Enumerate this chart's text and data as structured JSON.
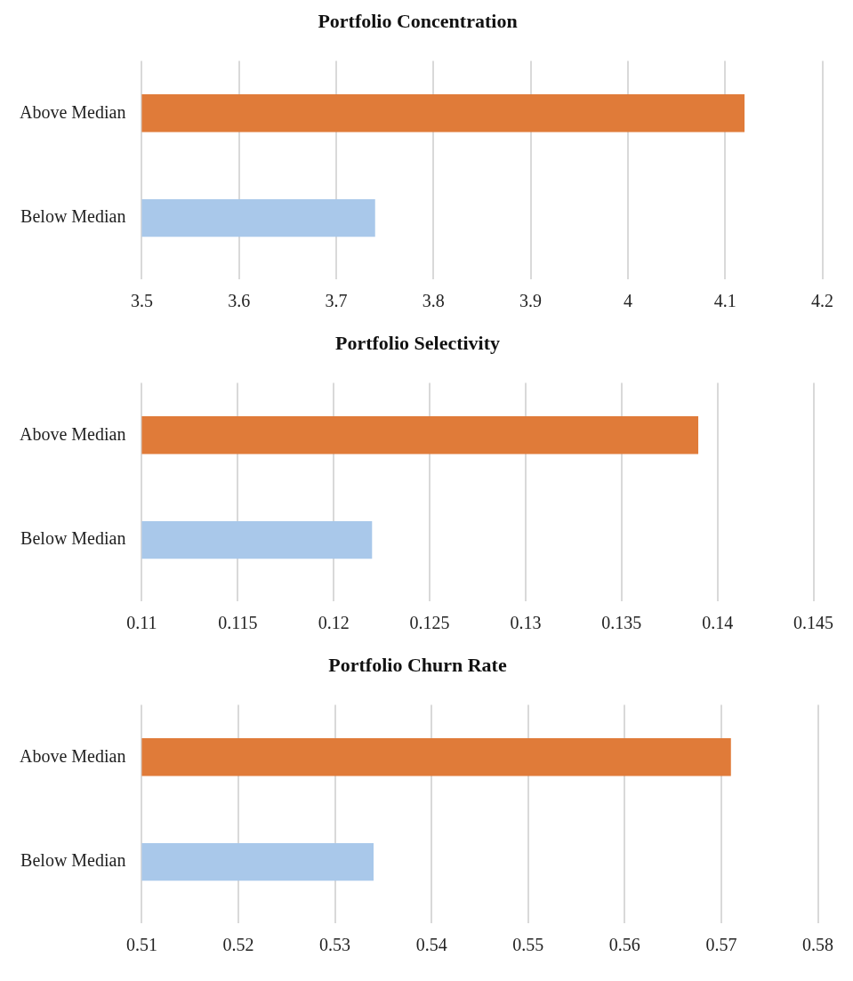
{
  "chart_data": [
    {
      "type": "bar",
      "orientation": "horizontal",
      "title": "Portfolio Concentration",
      "categories": [
        "Above Median",
        "Below Median"
      ],
      "values": [
        4.12,
        3.74
      ],
      "colors": [
        "#e07b39",
        "#a9c8ea"
      ],
      "xlim": [
        3.5,
        4.2
      ],
      "xticks": [
        3.5,
        3.6,
        3.7,
        3.8,
        3.9,
        4,
        4.1,
        4.2
      ],
      "grid": "x",
      "legend": false
    },
    {
      "type": "bar",
      "orientation": "horizontal",
      "title": "Portfolio Selectivity",
      "categories": [
        "Above Median",
        "Below Median"
      ],
      "values": [
        0.139,
        0.122
      ],
      "colors": [
        "#e07b39",
        "#a9c8ea"
      ],
      "xlim": [
        0.11,
        0.145
      ],
      "xticks": [
        0.11,
        0.115,
        0.12,
        0.125,
        0.13,
        0.135,
        0.14,
        0.145
      ],
      "grid": "x",
      "legend": false
    },
    {
      "type": "bar",
      "orientation": "horizontal",
      "title": "Portfolio Churn Rate",
      "categories": [
        "Above Median",
        "Below Median"
      ],
      "values": [
        0.571,
        0.534
      ],
      "colors": [
        "#e07b39",
        "#a9c8ea"
      ],
      "xlim": [
        0.51,
        0.58
      ],
      "xticks": [
        0.51,
        0.52,
        0.53,
        0.54,
        0.55,
        0.56,
        0.57,
        0.58
      ],
      "grid": "x",
      "legend": false
    }
  ]
}
